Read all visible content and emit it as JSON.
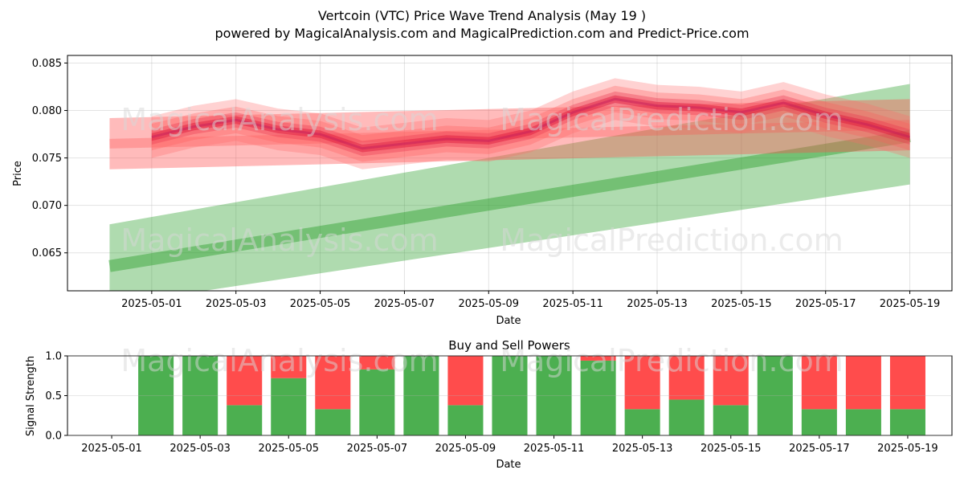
{
  "title_line1": "Vertcoin (VTC) Price Wave Trend Analysis (May 19 )",
  "title_line2": "powered by MagicalAnalysis.com and MagicalPrediction.com and Predict-Price.com",
  "watermarks": [
    "MagicalAnalysis.com",
    "MagicalPrediction.com"
  ],
  "colors": {
    "bull": "#2ca02c",
    "bear": "#ff4d4d",
    "buy": "#4caf50",
    "sell": "#ff4c4c",
    "wave": "#dc143c"
  },
  "chart_data": [
    {
      "type": "area",
      "xlabel": "Date",
      "ylabel": "Price",
      "ylim": [
        0.061,
        0.0858
      ],
      "yticks": [
        0.065,
        0.07,
        0.075,
        0.08,
        0.085
      ],
      "ytick_labels": [
        "0.065",
        "0.070",
        "0.075",
        "0.080",
        "0.085"
      ],
      "x_range": [
        "2025-04-29",
        "2025-05-20"
      ],
      "xtick_labels": [
        "2025-05-01",
        "2025-05-03",
        "2025-05-05",
        "2025-05-07",
        "2025-05-09",
        "2025-05-11",
        "2025-05-13",
        "2025-05-15",
        "2025-05-17",
        "2025-05-19"
      ],
      "grid": true,
      "bull_trend": {
        "x": [
          "2025-04-30",
          "2025-05-19"
        ],
        "upper": [
          0.068,
          0.0828
        ],
        "center": [
          0.0636,
          0.0773
        ],
        "lower": [
          0.0595,
          0.0722
        ]
      },
      "bear_trend": {
        "x": [
          "2025-04-30",
          "2025-05-19"
        ],
        "upper": [
          0.0792,
          0.0812
        ],
        "center": [
          0.0765,
          0.0785
        ],
        "lower": [
          0.0738,
          0.0758
        ]
      },
      "wave": {
        "x": [
          "2025-05-01",
          "2025-05-02",
          "2025-05-03",
          "2025-05-04",
          "2025-05-05",
          "2025-05-06",
          "2025-05-07",
          "2025-05-08",
          "2025-05-09",
          "2025-05-10",
          "2025-05-11",
          "2025-05-12",
          "2025-05-13",
          "2025-05-14",
          "2025-05-15",
          "2025-05-16",
          "2025-05-17",
          "2025-05-18",
          "2025-05-19"
        ],
        "values": [
          0.0772,
          0.0783,
          0.079,
          0.078,
          0.0775,
          0.076,
          0.0765,
          0.077,
          0.0768,
          0.0778,
          0.0798,
          0.0812,
          0.0805,
          0.0803,
          0.0798,
          0.0808,
          0.0795,
          0.0785,
          0.0772
        ]
      }
    },
    {
      "type": "bar",
      "title": "Buy and Sell Powers",
      "xlabel": "Date",
      "ylabel": "Signal Strength",
      "ylim": [
        0,
        1
      ],
      "yticks": [
        0,
        0.5,
        1
      ],
      "ytick_labels": [
        "0.0",
        "0.5",
        "1.0"
      ],
      "x_range": [
        "2025-04-30",
        "2025-05-20"
      ],
      "xtick_labels": [
        "2025-05-01",
        "2025-05-03",
        "2025-05-05",
        "2025-05-07",
        "2025-05-09",
        "2025-05-11",
        "2025-05-13",
        "2025-05-15",
        "2025-05-17",
        "2025-05-19"
      ],
      "categories": [
        "2025-05-02",
        "2025-05-03",
        "2025-05-04",
        "2025-05-05",
        "2025-05-06",
        "2025-05-07",
        "2025-05-08",
        "2025-05-09",
        "2025-05-10",
        "2025-05-11",
        "2025-05-12",
        "2025-05-13",
        "2025-05-14",
        "2025-05-15",
        "2025-05-16",
        "2025-05-17",
        "2025-05-18",
        "2025-05-19"
      ],
      "series": [
        {
          "values": [
            1.0,
            1.0,
            0.38,
            0.72,
            0.33,
            0.83,
            1.0,
            0.38,
            1.0,
            1.0,
            0.94,
            0.33,
            0.45,
            0.38,
            1.0,
            0.33,
            0.33,
            0.33
          ]
        },
        {
          "values": [
            0.0,
            0.0,
            0.62,
            0.28,
            0.67,
            0.17,
            0.0,
            0.62,
            0.0,
            0.0,
            0.06,
            0.67,
            0.55,
            0.62,
            0.0,
            0.67,
            0.67,
            0.67
          ]
        }
      ]
    }
  ]
}
